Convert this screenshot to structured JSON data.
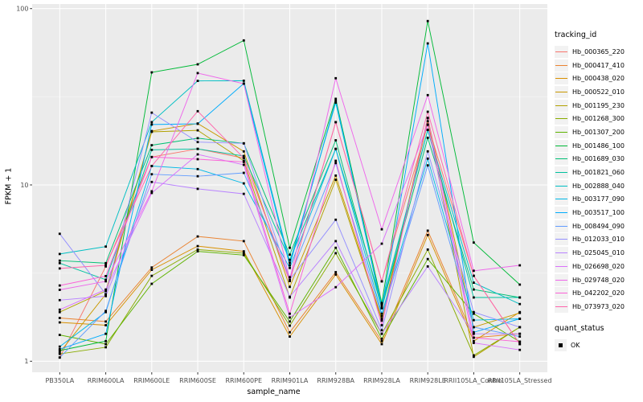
{
  "figure": {
    "background": "#FFFFFF",
    "panel_background": "#EBEBEB",
    "grid_major_color": "#FFFFFF",
    "grid_minor_color": "#F7F7F7",
    "tick_color": "#333333",
    "tick_label_color": "#4D4D4D",
    "marker_color": "#000000"
  },
  "chart_data": {
    "type": "line",
    "title": "",
    "xlabel": "sample_name",
    "ylabel": "FPKM + 1",
    "y_scale": "log10",
    "ylim": [
      0.87,
      106
    ],
    "y_ticks": [
      1,
      10,
      100
    ],
    "y_minor_ticks": [
      3.162,
      31.62
    ],
    "grid": true,
    "legend_position": "right",
    "point_marker": "filled-square",
    "categories": [
      "PB350LA",
      "RRIM600LA",
      "RRIM600LE",
      "RRIM600SE",
      "RRIM600PE",
      "RRIM901LA",
      "RRIM928BA",
      "RRIM928LA",
      "RRIM928LE",
      "RRII105LA_Control",
      "RRII105LA_Stressed"
    ],
    "series": [
      {
        "name": "Hb_000365_220",
        "color": "#F8766D",
        "values": [
          1.05,
          3.45,
          14.4,
          16.0,
          14.2,
          2.85,
          22.7,
          2.84,
          22.0,
          3.05,
          1.25
        ]
      },
      {
        "name": "Hb_000417_410",
        "color": "#EA8331",
        "values": [
          1.76,
          1.68,
          3.4,
          5.1,
          4.8,
          1.46,
          3.2,
          1.3,
          5.5,
          1.36,
          1.43
        ]
      },
      {
        "name": "Hb_000438_020",
        "color": "#D89000",
        "values": [
          1.66,
          1.6,
          3.3,
          4.5,
          4.2,
          1.38,
          3.1,
          1.25,
          5.2,
          1.3,
          1.9
        ]
      },
      {
        "name": "Hb_000522_010",
        "color": "#C99800",
        "values": [
          1.12,
          2.4,
          20.2,
          22.3,
          15.5,
          2.64,
          11.3,
          1.74,
          24.0,
          1.56,
          1.88
        ]
      },
      {
        "name": "Hb_001195_230",
        "color": "#B2A100",
        "values": [
          1.9,
          2.5,
          20.0,
          20.4,
          13.7,
          2.3,
          10.7,
          1.7,
          23.0,
          1.06,
          1.56
        ]
      },
      {
        "name": "Hb_001268_300",
        "color": "#89AC00",
        "values": [
          1.1,
          1.2,
          3.05,
          4.3,
          4.1,
          1.59,
          4.1,
          1.43,
          4.3,
          1.08,
          1.56
        ]
      },
      {
        "name": "Hb_001307_200",
        "color": "#5EB300",
        "values": [
          1.41,
          1.25,
          2.75,
          4.2,
          4.0,
          1.68,
          4.4,
          1.34,
          3.8,
          1.86,
          1.29
        ]
      },
      {
        "name": "Hb_001486_100",
        "color": "#00BA38",
        "values": [
          1.15,
          1.3,
          43.5,
          48.3,
          66.0,
          4.4,
          30.8,
          2.14,
          85.0,
          4.71,
          2.72
        ]
      },
      {
        "name": "Hb_001689_030",
        "color": "#00BF74",
        "values": [
          3.72,
          3.6,
          16.8,
          18.4,
          17.2,
          4.02,
          17.9,
          2.0,
          18.5,
          2.55,
          2.3
        ]
      },
      {
        "name": "Hb_001821_060",
        "color": "#00C19F",
        "values": [
          3.6,
          2.9,
          15.8,
          16.0,
          14.6,
          3.76,
          16.0,
          2.1,
          20.5,
          2.3,
          2.3
        ]
      },
      {
        "name": "Hb_002888_040",
        "color": "#00BFC4",
        "values": [
          4.06,
          4.47,
          22.7,
          38.9,
          39.0,
          3.62,
          29.3,
          2.05,
          20.5,
          2.79,
          2.11
        ]
      },
      {
        "name": "Hb_003177_090",
        "color": "#00B8E7",
        "values": [
          1.21,
          1.9,
          12.8,
          12.3,
          10.2,
          3.38,
          16.0,
          1.86,
          14.1,
          1.71,
          1.74
        ]
      },
      {
        "name": "Hb_003517_100",
        "color": "#00ACFC",
        "values": [
          1.17,
          1.43,
          22.0,
          22.2,
          37.6,
          3.5,
          30.0,
          2.0,
          63.5,
          1.46,
          1.74
        ]
      },
      {
        "name": "Hb_008494_090",
        "color": "#619CFF",
        "values": [
          1.05,
          1.93,
          11.5,
          11.2,
          11.7,
          3.0,
          13.3,
          1.8,
          12.9,
          1.56,
          1.38
        ]
      },
      {
        "name": "Hb_012033_010",
        "color": "#9590FF",
        "values": [
          5.28,
          2.4,
          25.7,
          17.5,
          17.2,
          2.9,
          6.35,
          1.5,
          15.5,
          1.9,
          1.56
        ]
      },
      {
        "name": "Hb_025045_010",
        "color": "#B983FF",
        "values": [
          2.22,
          2.34,
          10.4,
          9.5,
          8.9,
          2.32,
          4.8,
          1.43,
          3.45,
          1.43,
          1.43
        ]
      },
      {
        "name": "Hb_026698_020",
        "color": "#DA72FB",
        "values": [
          1.96,
          2.55,
          9.0,
          14.9,
          13.0,
          1.77,
          2.63,
          4.64,
          21.9,
          1.27,
          1.16
        ]
      },
      {
        "name": "Hb_029748_020",
        "color": "#EF67EB",
        "values": [
          2.54,
          2.84,
          9.2,
          43.1,
          37.5,
          2.89,
          40.3,
          5.6,
          32.3,
          3.26,
          3.5
        ]
      },
      {
        "name": "Hb_042202_020",
        "color": "#FB61D7",
        "values": [
          2.69,
          3.04,
          14.4,
          14.0,
          13.5,
          1.86,
          13.7,
          1.6,
          23.9,
          1.36,
          1.29
        ]
      },
      {
        "name": "Hb_073973_020",
        "color": "#FF65AC",
        "values": [
          3.36,
          3.5,
          12.8,
          26.2,
          14.2,
          2.85,
          22.7,
          2.84,
          26.0,
          3.05,
          1.25
        ]
      }
    ]
  },
  "legend": {
    "tracking_title": "tracking_id",
    "quant_title": "quant_status",
    "quant_items": [
      {
        "label": "OK"
      }
    ]
  }
}
